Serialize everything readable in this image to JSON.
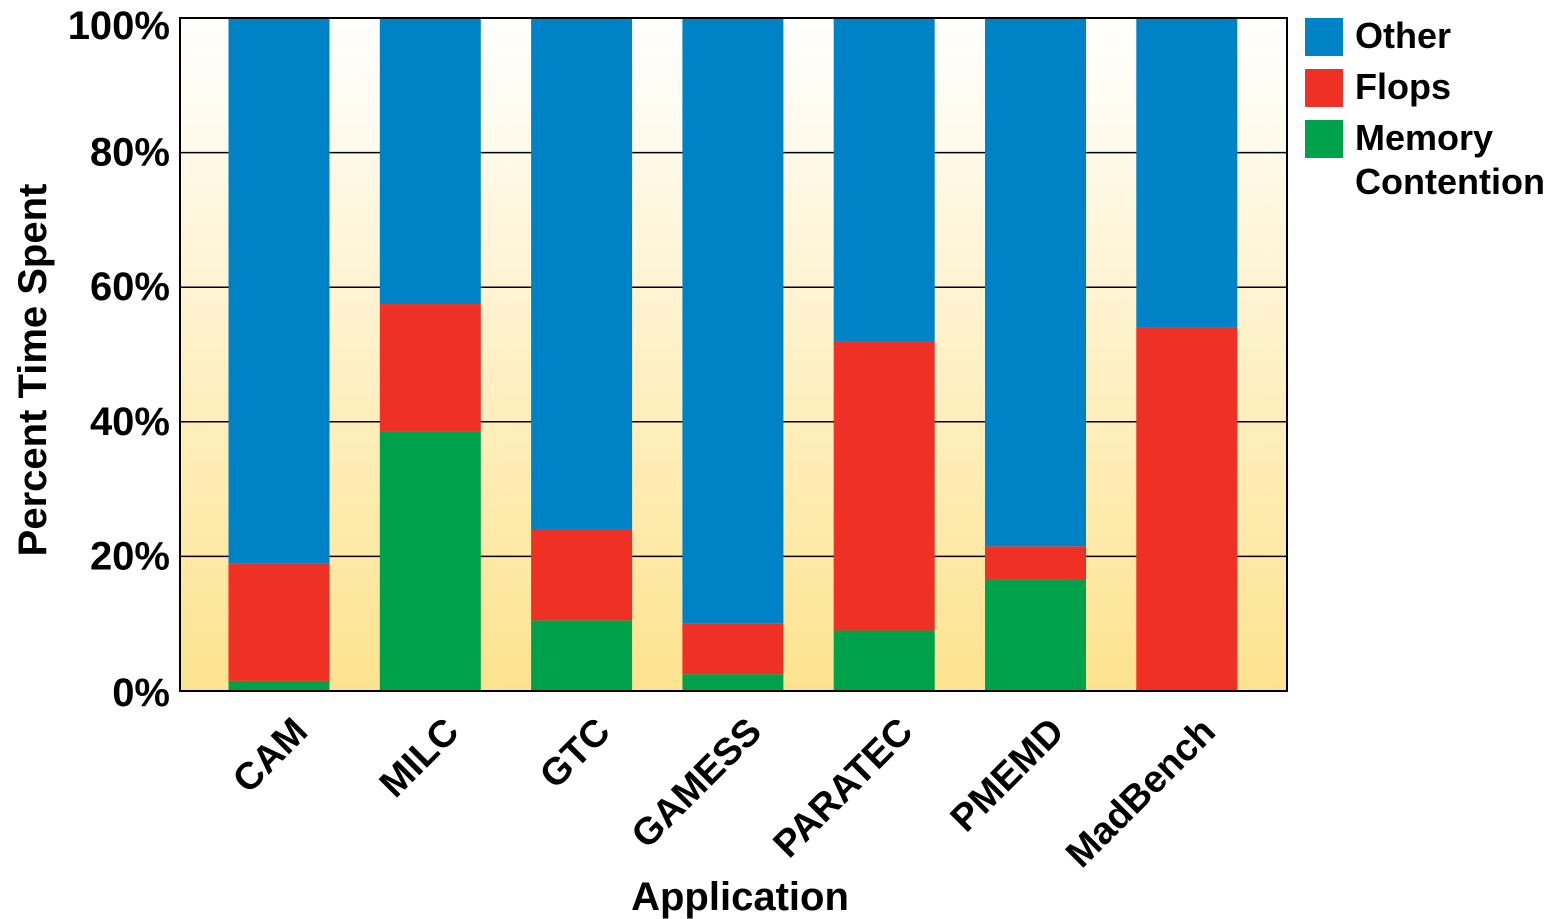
{
  "chart_data": {
    "type": "bar",
    "stacked": true,
    "title": "",
    "xlabel": "Application",
    "ylabel": "Percent Time Spent",
    "ylim": [
      0,
      100
    ],
    "y_ticks": [
      0,
      20,
      40,
      60,
      80,
      100
    ],
    "y_tick_labels": [
      "0%",
      "20%",
      "40%",
      "60%",
      "80%",
      "100%"
    ],
    "grid": "horizontal",
    "legend_position": "right",
    "categories": [
      "CAM",
      "MILC",
      "GTC",
      "GAMESS",
      "PARATEC",
      "PMEMD",
      "MadBench"
    ],
    "series": [
      {
        "name": "Memory Contention",
        "color": "#00a14b",
        "values": [
          1.5,
          38.5,
          10.5,
          2.5,
          9.0,
          16.5,
          0
        ]
      },
      {
        "name": "Flops",
        "color": "#ee3124",
        "values": [
          17.5,
          19.0,
          13.5,
          7.5,
          43.0,
          5.0,
          54.0
        ]
      },
      {
        "name": "Other",
        "color": "#0083c6",
        "values": [
          81.0,
          42.5,
          76.0,
          90.0,
          48.0,
          78.5,
          46.0
        ]
      }
    ],
    "legend": [
      {
        "label": "Other",
        "color": "#0083c6"
      },
      {
        "label": "Flops",
        "color": "#ee3124"
      },
      {
        "label": "Memory Contention",
        "label_lines": [
          "Memory",
          "Contention"
        ],
        "color": "#00a14b"
      }
    ],
    "background_gradient": {
      "top": "#ffffff",
      "bottom": "#fde38f"
    }
  }
}
